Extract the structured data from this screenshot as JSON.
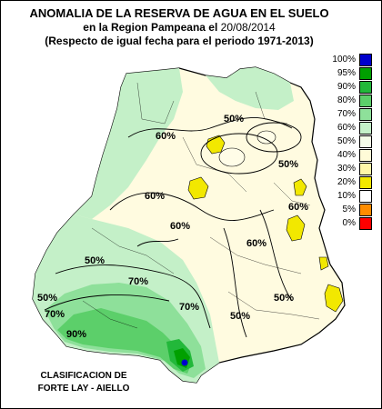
{
  "title": {
    "line1": "ANOMALIA DE LA RESERVA DE AGUA EN EL SUELO",
    "line2_prefix": "en la Region Pampeana el",
    "date": "20/08/2014",
    "line3": "(Respecto de igual fecha para el periodo 1971-2013)"
  },
  "credit": {
    "line1": "CLASIFICACION DE",
    "line2": "FORTE LAY - AIELLO"
  },
  "legend": [
    {
      "label": "100%",
      "color": "#0000cc"
    },
    {
      "label": "95%",
      "color": "#00a000"
    },
    {
      "label": "90%",
      "color": "#22b83a"
    },
    {
      "label": "80%",
      "color": "#5ccf6a"
    },
    {
      "label": "70%",
      "color": "#8ee09a"
    },
    {
      "label": "60%",
      "color": "#c4f0c8"
    },
    {
      "label": "50%",
      "color": "#f4fbe8"
    },
    {
      "label": "40%",
      "color": "#fffbd8"
    },
    {
      "label": "30%",
      "color": "#fff6a8"
    },
    {
      "label": "20%",
      "color": "#f2e800"
    },
    {
      "label": "10%",
      "color": "#ffffff"
    },
    {
      "label": "5%",
      "color": "#ff8c00"
    },
    {
      "label": "0%",
      "color": "#ff0000"
    }
  ],
  "contour_labels": [
    "50%",
    "60%",
    "60%",
    "50%",
    "60%",
    "50%",
    "70%",
    "50%",
    "70%",
    "90%",
    "70%",
    "60%",
    "60%",
    "50%",
    "50%"
  ]
}
